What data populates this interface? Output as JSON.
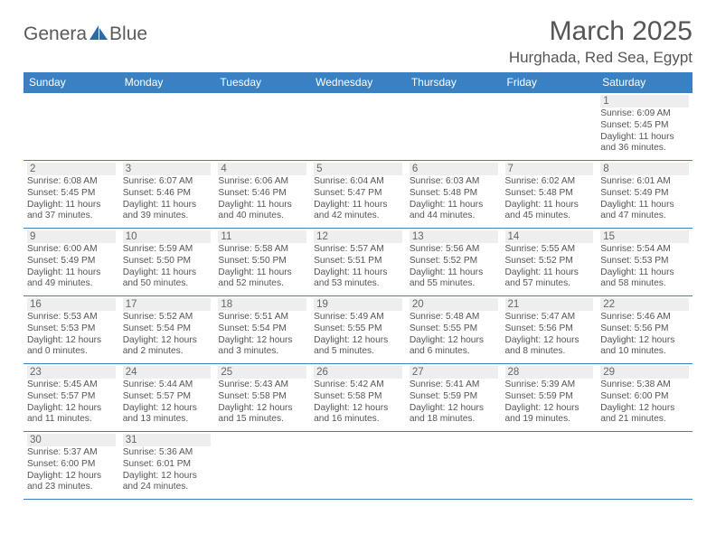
{
  "logo": {
    "text_left": "Genera",
    "text_right": "Blue"
  },
  "header": {
    "month_title": "March 2025",
    "location": "Hurghada, Red Sea, Egypt"
  },
  "colors": {
    "header_bg": "#3a81c3",
    "header_fg": "#ffffff",
    "border": "#3a81c3",
    "daynum_bg": "#eeeeee",
    "text": "#555555",
    "sail_fill": "#2f6aa8"
  },
  "weekdays": [
    "Sunday",
    "Monday",
    "Tuesday",
    "Wednesday",
    "Thursday",
    "Friday",
    "Saturday"
  ],
  "cells": [
    {
      "day": "",
      "sunrise": "",
      "sunset": "",
      "daylight": ""
    },
    {
      "day": "",
      "sunrise": "",
      "sunset": "",
      "daylight": ""
    },
    {
      "day": "",
      "sunrise": "",
      "sunset": "",
      "daylight": ""
    },
    {
      "day": "",
      "sunrise": "",
      "sunset": "",
      "daylight": ""
    },
    {
      "day": "",
      "sunrise": "",
      "sunset": "",
      "daylight": ""
    },
    {
      "day": "",
      "sunrise": "",
      "sunset": "",
      "daylight": ""
    },
    {
      "day": "1",
      "sunrise": "Sunrise: 6:09 AM",
      "sunset": "Sunset: 5:45 PM",
      "daylight": "Daylight: 11 hours and 36 minutes."
    },
    {
      "day": "2",
      "sunrise": "Sunrise: 6:08 AM",
      "sunset": "Sunset: 5:45 PM",
      "daylight": "Daylight: 11 hours and 37 minutes."
    },
    {
      "day": "3",
      "sunrise": "Sunrise: 6:07 AM",
      "sunset": "Sunset: 5:46 PM",
      "daylight": "Daylight: 11 hours and 39 minutes."
    },
    {
      "day": "4",
      "sunrise": "Sunrise: 6:06 AM",
      "sunset": "Sunset: 5:46 PM",
      "daylight": "Daylight: 11 hours and 40 minutes."
    },
    {
      "day": "5",
      "sunrise": "Sunrise: 6:04 AM",
      "sunset": "Sunset: 5:47 PM",
      "daylight": "Daylight: 11 hours and 42 minutes."
    },
    {
      "day": "6",
      "sunrise": "Sunrise: 6:03 AM",
      "sunset": "Sunset: 5:48 PM",
      "daylight": "Daylight: 11 hours and 44 minutes."
    },
    {
      "day": "7",
      "sunrise": "Sunrise: 6:02 AM",
      "sunset": "Sunset: 5:48 PM",
      "daylight": "Daylight: 11 hours and 45 minutes."
    },
    {
      "day": "8",
      "sunrise": "Sunrise: 6:01 AM",
      "sunset": "Sunset: 5:49 PM",
      "daylight": "Daylight: 11 hours and 47 minutes."
    },
    {
      "day": "9",
      "sunrise": "Sunrise: 6:00 AM",
      "sunset": "Sunset: 5:49 PM",
      "daylight": "Daylight: 11 hours and 49 minutes."
    },
    {
      "day": "10",
      "sunrise": "Sunrise: 5:59 AM",
      "sunset": "Sunset: 5:50 PM",
      "daylight": "Daylight: 11 hours and 50 minutes."
    },
    {
      "day": "11",
      "sunrise": "Sunrise: 5:58 AM",
      "sunset": "Sunset: 5:50 PM",
      "daylight": "Daylight: 11 hours and 52 minutes."
    },
    {
      "day": "12",
      "sunrise": "Sunrise: 5:57 AM",
      "sunset": "Sunset: 5:51 PM",
      "daylight": "Daylight: 11 hours and 53 minutes."
    },
    {
      "day": "13",
      "sunrise": "Sunrise: 5:56 AM",
      "sunset": "Sunset: 5:52 PM",
      "daylight": "Daylight: 11 hours and 55 minutes."
    },
    {
      "day": "14",
      "sunrise": "Sunrise: 5:55 AM",
      "sunset": "Sunset: 5:52 PM",
      "daylight": "Daylight: 11 hours and 57 minutes."
    },
    {
      "day": "15",
      "sunrise": "Sunrise: 5:54 AM",
      "sunset": "Sunset: 5:53 PM",
      "daylight": "Daylight: 11 hours and 58 minutes."
    },
    {
      "day": "16",
      "sunrise": "Sunrise: 5:53 AM",
      "sunset": "Sunset: 5:53 PM",
      "daylight": "Daylight: 12 hours and 0 minutes."
    },
    {
      "day": "17",
      "sunrise": "Sunrise: 5:52 AM",
      "sunset": "Sunset: 5:54 PM",
      "daylight": "Daylight: 12 hours and 2 minutes."
    },
    {
      "day": "18",
      "sunrise": "Sunrise: 5:51 AM",
      "sunset": "Sunset: 5:54 PM",
      "daylight": "Daylight: 12 hours and 3 minutes."
    },
    {
      "day": "19",
      "sunrise": "Sunrise: 5:49 AM",
      "sunset": "Sunset: 5:55 PM",
      "daylight": "Daylight: 12 hours and 5 minutes."
    },
    {
      "day": "20",
      "sunrise": "Sunrise: 5:48 AM",
      "sunset": "Sunset: 5:55 PM",
      "daylight": "Daylight: 12 hours and 6 minutes."
    },
    {
      "day": "21",
      "sunrise": "Sunrise: 5:47 AM",
      "sunset": "Sunset: 5:56 PM",
      "daylight": "Daylight: 12 hours and 8 minutes."
    },
    {
      "day": "22",
      "sunrise": "Sunrise: 5:46 AM",
      "sunset": "Sunset: 5:56 PM",
      "daylight": "Daylight: 12 hours and 10 minutes."
    },
    {
      "day": "23",
      "sunrise": "Sunrise: 5:45 AM",
      "sunset": "Sunset: 5:57 PM",
      "daylight": "Daylight: 12 hours and 11 minutes."
    },
    {
      "day": "24",
      "sunrise": "Sunrise: 5:44 AM",
      "sunset": "Sunset: 5:57 PM",
      "daylight": "Daylight: 12 hours and 13 minutes."
    },
    {
      "day": "25",
      "sunrise": "Sunrise: 5:43 AM",
      "sunset": "Sunset: 5:58 PM",
      "daylight": "Daylight: 12 hours and 15 minutes."
    },
    {
      "day": "26",
      "sunrise": "Sunrise: 5:42 AM",
      "sunset": "Sunset: 5:58 PM",
      "daylight": "Daylight: 12 hours and 16 minutes."
    },
    {
      "day": "27",
      "sunrise": "Sunrise: 5:41 AM",
      "sunset": "Sunset: 5:59 PM",
      "daylight": "Daylight: 12 hours and 18 minutes."
    },
    {
      "day": "28",
      "sunrise": "Sunrise: 5:39 AM",
      "sunset": "Sunset: 5:59 PM",
      "daylight": "Daylight: 12 hours and 19 minutes."
    },
    {
      "day": "29",
      "sunrise": "Sunrise: 5:38 AM",
      "sunset": "Sunset: 6:00 PM",
      "daylight": "Daylight: 12 hours and 21 minutes."
    },
    {
      "day": "30",
      "sunrise": "Sunrise: 5:37 AM",
      "sunset": "Sunset: 6:00 PM",
      "daylight": "Daylight: 12 hours and 23 minutes."
    },
    {
      "day": "31",
      "sunrise": "Sunrise: 5:36 AM",
      "sunset": "Sunset: 6:01 PM",
      "daylight": "Daylight: 12 hours and 24 minutes."
    },
    {
      "day": "",
      "sunrise": "",
      "sunset": "",
      "daylight": ""
    },
    {
      "day": "",
      "sunrise": "",
      "sunset": "",
      "daylight": ""
    },
    {
      "day": "",
      "sunrise": "",
      "sunset": "",
      "daylight": ""
    },
    {
      "day": "",
      "sunrise": "",
      "sunset": "",
      "daylight": ""
    },
    {
      "day": "",
      "sunrise": "",
      "sunset": "",
      "daylight": ""
    }
  ]
}
